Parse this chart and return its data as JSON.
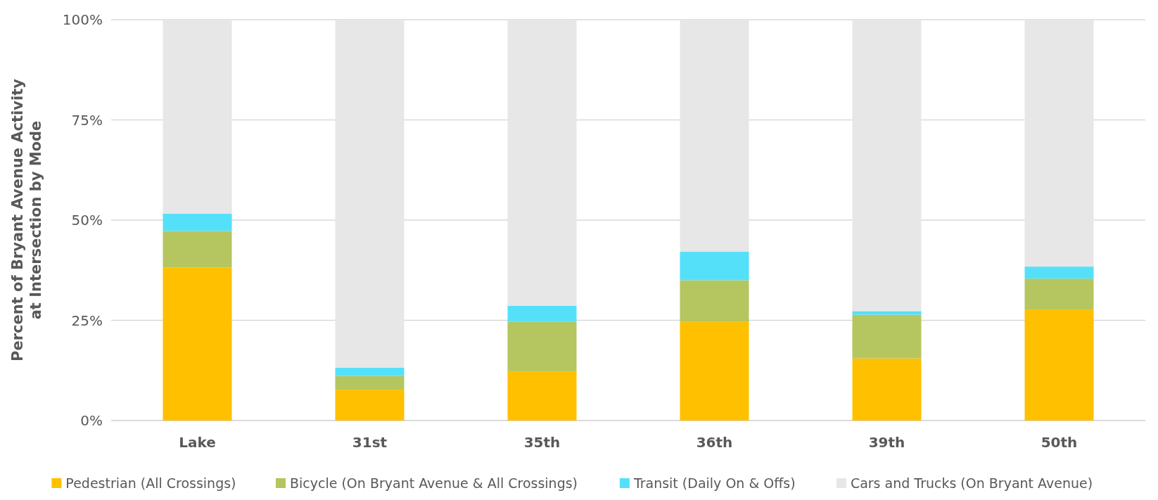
{
  "chart_data": {
    "type": "bar",
    "stacked": true,
    "ylabel": "Percent of Bryant Avenue Activity at Intersection by Mode",
    "categories": [
      "Lake",
      "31st",
      "35th",
      "36th",
      "39th",
      "50th"
    ],
    "series": [
      {
        "name": "Pedestrian (All Crossings)",
        "color": "#ffc000",
        "values": [
          38.2,
          7.7,
          12.3,
          24.6,
          15.5,
          27.7
        ]
      },
      {
        "name": "Bicycle (On Bryant Avenue & All Crossings)",
        "color": "#b5c55f",
        "values": [
          9.1,
          3.4,
          12.3,
          10.4,
          10.9,
          7.7
        ]
      },
      {
        "name": "Transit (Daily On & Offs)",
        "color": "#55e0fa",
        "values": [
          4.3,
          2.1,
          4.0,
          7.1,
          0.9,
          3.0
        ]
      },
      {
        "name": "Cars and Trucks (On Bryant Avenue)",
        "color": "#e7e7e7",
        "values": [
          48.4,
          86.8,
          71.4,
          57.9,
          72.7,
          61.6
        ]
      }
    ],
    "ylim": [
      0,
      100
    ],
    "yticks": [
      {
        "value": 0,
        "label": "0%"
      },
      {
        "value": 25,
        "label": "25%"
      },
      {
        "value": 50,
        "label": "50%"
      },
      {
        "value": 75,
        "label": "75%"
      },
      {
        "value": 100,
        "label": "100%"
      }
    ],
    "grid": "y",
    "legend": "bottom"
  }
}
